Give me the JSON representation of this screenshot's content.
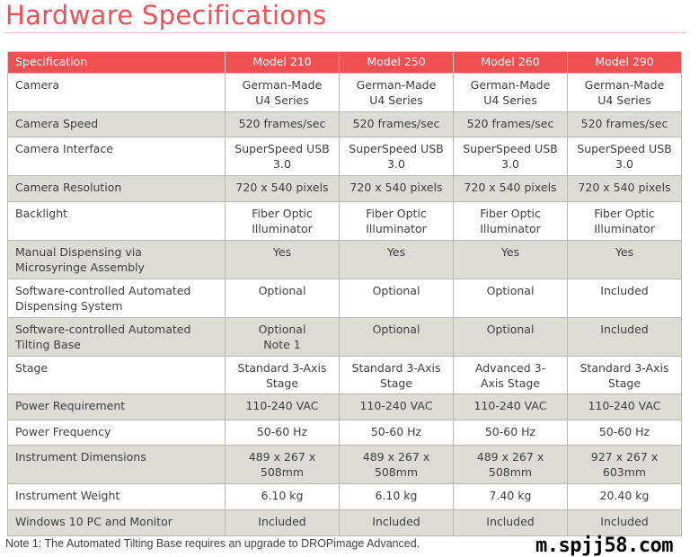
{
  "title": "Hardware Specifications",
  "table": {
    "headers": [
      "Specification",
      "Model 210",
      "Model 250",
      "Model 260",
      "Model 290"
    ],
    "rows": [
      {
        "label": "Camera",
        "values": [
          "German-Made\nU4 Series",
          "German-Made\nU4 Series",
          "German-Made\nU4 Series",
          "German-Made\nU4 Series"
        ]
      },
      {
        "label": "Camera Speed",
        "values": [
          "520 frames/sec",
          "520 frames/sec",
          "520 frames/sec",
          "520 frames/sec"
        ]
      },
      {
        "label": "Camera Interface",
        "values": [
          "SuperSpeed USB\n3.0",
          "SuperSpeed USB\n3.0",
          "SuperSpeed USB\n3.0",
          "SuperSpeed USB\n3.0"
        ]
      },
      {
        "label": "Camera Resolution",
        "values": [
          "720 x 540 pixels",
          "720 x 540 pixels",
          "720 x 540 pixels",
          "720 x 540 pixels"
        ]
      },
      {
        "label": "Backlight",
        "values": [
          "Fiber Optic\nIlluminator",
          "Fiber Optic\nIlluminator",
          "Fiber Optic\nIlluminator",
          "Fiber Optic\nIlluminator"
        ]
      },
      {
        "label": "Manual Dispensing via\nMicrosyringe Assembly",
        "values": [
          "Yes",
          "Yes",
          "Yes",
          "Yes"
        ]
      },
      {
        "label": "Software-controlled Automated\nDispensing System",
        "values": [
          "Optional",
          "Optional",
          "Optional",
          "Included"
        ]
      },
      {
        "label": "Software-controlled Automated\nTilting Base",
        "values": [
          "Optional\nNote 1",
          "Optional",
          "Optional",
          "Included"
        ]
      },
      {
        "label": "Stage",
        "values": [
          "Standard 3-Axis\nStage",
          "Standard 3-Axis\nStage",
          "Advanced 3-\nAxis Stage",
          "Standard 3-Axis\nStage"
        ]
      },
      {
        "label": "Power Requirement",
        "values": [
          "110-240 VAC",
          "110-240 VAC",
          "110-240 VAC",
          "110-240 VAC"
        ]
      },
      {
        "label": "Power Frequency",
        "values": [
          "50-60 Hz",
          "50-60 Hz",
          "50-60 Hz",
          "50-60 Hz"
        ]
      },
      {
        "label": "Instrument Dimensions",
        "values": [
          "489 x 267 x\n508mm",
          "489 x 267 x\n508mm",
          "489 x 267 x\n508mm",
          "927 x 267 x\n603mm"
        ]
      },
      {
        "label": "Instrument Weight",
        "values": [
          "6.10 kg",
          "6.10 kg",
          "7.40 kg",
          "20.40 kg"
        ]
      },
      {
        "label": "Windows 10 PC and Monitor",
        "values": [
          "Included",
          "Included",
          "Included",
          "Included"
        ]
      }
    ]
  },
  "note": "Note 1: The Automated Tilting Base requires an upgrade to DROPimage Advanced.",
  "watermark": "m.spjj58.com",
  "colors": {
    "accent": "#f05052",
    "alt_row": "#dcdcd5"
  }
}
